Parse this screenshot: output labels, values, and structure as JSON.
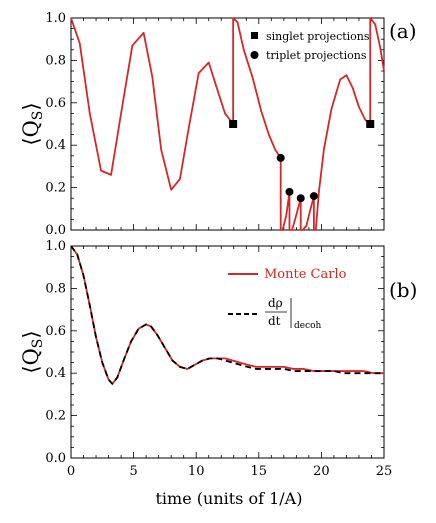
{
  "figure": {
    "x_label": "time (units of 1/A)",
    "y_label_a": "⟨Q",
    "y_label_b": "⟨Q",
    "y_label_sub": "S",
    "y_label_close": "⟩"
  },
  "chart_data": [
    {
      "panel_label": "(a)",
      "type": "line",
      "xlim": [
        0,
        25
      ],
      "ylim": [
        0,
        1
      ],
      "x_ticks": [
        "0",
        "5",
        "10",
        "15",
        "20",
        "25"
      ],
      "y_ticks": [
        "0.0",
        "0.2",
        "0.4",
        "0.6",
        "0.8",
        "1.0"
      ],
      "x_tick_values": [
        0,
        5,
        10,
        15,
        20,
        25
      ],
      "y_tick_values": [
        0,
        0.2,
        0.4,
        0.6,
        0.8,
        1.0
      ],
      "series": [
        {
          "color": "#d62728",
          "x": [
            0,
            0.7,
            1.5,
            2.4,
            3.2,
            4.0,
            4.9,
            5.8,
            6.5,
            7.2,
            8.0,
            8.7,
            9.4,
            10.2,
            11.0,
            11.7,
            12.3,
            12.95,
            12.95,
            13.3,
            13.8,
            14.5,
            15.2,
            15.8,
            16.3,
            16.75,
            16.75,
            16.9,
            17.2,
            17.45,
            17.45,
            17.65,
            17.9,
            18.35,
            18.35,
            18.5,
            18.8,
            19.05,
            19.4,
            19.4,
            19.55,
            19.8,
            20.2,
            20.8,
            21.5,
            22.0,
            22.5,
            23.0,
            23.5,
            23.9,
            23.9,
            24.3,
            24.7,
            25
          ],
          "y": [
            1.0,
            0.88,
            0.55,
            0.28,
            0.26,
            0.55,
            0.87,
            0.93,
            0.72,
            0.38,
            0.19,
            0.24,
            0.48,
            0.74,
            0.79,
            0.66,
            0.55,
            0.5,
            1.0,
            0.98,
            0.85,
            0.72,
            0.56,
            0.45,
            0.38,
            0.34,
            0.0,
            0.0,
            0.07,
            0.18,
            0.0,
            0.0,
            0.05,
            0.15,
            0.0,
            0.0,
            0.02,
            0.08,
            0.16,
            0.0,
            0.0,
            0.18,
            0.38,
            0.57,
            0.71,
            0.73,
            0.67,
            0.58,
            0.52,
            0.5,
            1.0,
            0.97,
            0.86,
            0.75
          ]
        }
      ],
      "markers": [
        {
          "shape": "square",
          "x": 12.95,
          "y": 0.5
        },
        {
          "shape": "circle",
          "x": 16.75,
          "y": 0.34
        },
        {
          "shape": "circle",
          "x": 17.45,
          "y": 0.18
        },
        {
          "shape": "circle",
          "x": 18.35,
          "y": 0.15
        },
        {
          "shape": "circle",
          "x": 19.4,
          "y": 0.16
        },
        {
          "shape": "square",
          "x": 23.9,
          "y": 0.5
        }
      ],
      "legend": {
        "position": "top-right",
        "entries": [
          {
            "marker": "square",
            "label": "singlet projections"
          },
          {
            "marker": "circle",
            "label": "triplet projections"
          }
        ]
      }
    },
    {
      "panel_label": "(b)",
      "type": "line",
      "xlim": [
        0,
        25
      ],
      "ylim": [
        0,
        1
      ],
      "x_ticks": [
        "0",
        "5",
        "10",
        "15",
        "20",
        "25"
      ],
      "y_ticks": [
        "0.0",
        "0.2",
        "0.4",
        "0.6",
        "0.8",
        "1.0"
      ],
      "x_tick_values": [
        0,
        5,
        10,
        15,
        20,
        25
      ],
      "y_tick_values": [
        0,
        0.2,
        0.4,
        0.6,
        0.8,
        1.0
      ],
      "series": [
        {
          "name": "Monte Carlo",
          "color": "#d62728",
          "style": "solid",
          "x": [
            0,
            0.5,
            1,
            1.5,
            2,
            2.5,
            3,
            3.3,
            3.7,
            4.2,
            4.8,
            5.4,
            6.0,
            6.4,
            6.9,
            7.5,
            8.1,
            8.7,
            9.3,
            9.9,
            10.5,
            11.1,
            11.7,
            12.3,
            12.9,
            13.5,
            14.1,
            14.8,
            15.5,
            16.2,
            17.0,
            17.8,
            18.6,
            19.4,
            20.2,
            21.0,
            21.8,
            22.6,
            23.4,
            24.2,
            25
          ],
          "y": [
            1.0,
            0.96,
            0.86,
            0.72,
            0.57,
            0.45,
            0.37,
            0.35,
            0.38,
            0.46,
            0.55,
            0.61,
            0.63,
            0.62,
            0.58,
            0.52,
            0.46,
            0.43,
            0.42,
            0.44,
            0.46,
            0.47,
            0.47,
            0.47,
            0.46,
            0.45,
            0.44,
            0.43,
            0.43,
            0.43,
            0.43,
            0.42,
            0.42,
            0.41,
            0.41,
            0.41,
            0.41,
            0.41,
            0.41,
            0.4,
            0.4
          ]
        },
        {
          "name": "",
          "color": "#000000",
          "style": "dashed",
          "x": [
            0,
            0.5,
            1,
            1.5,
            2,
            2.5,
            3,
            3.3,
            3.7,
            4.2,
            4.8,
            5.4,
            6.0,
            6.4,
            6.9,
            7.5,
            8.1,
            8.7,
            9.3,
            9.9,
            10.5,
            11.1,
            11.7,
            12.3,
            12.9,
            13.5,
            14.1,
            14.8,
            15.5,
            16.2,
            17.0,
            17.8,
            18.6,
            19.4,
            20.2,
            21.0,
            21.8,
            22.6,
            23.4,
            24.2,
            25
          ],
          "y": [
            1.0,
            0.96,
            0.86,
            0.72,
            0.57,
            0.45,
            0.37,
            0.35,
            0.38,
            0.46,
            0.55,
            0.61,
            0.63,
            0.62,
            0.58,
            0.52,
            0.46,
            0.43,
            0.42,
            0.44,
            0.46,
            0.47,
            0.47,
            0.46,
            0.45,
            0.44,
            0.43,
            0.42,
            0.42,
            0.42,
            0.42,
            0.41,
            0.41,
            0.41,
            0.41,
            0.41,
            0.4,
            0.4,
            0.4,
            0.4,
            0.4
          ]
        }
      ],
      "legend": {
        "position": "top-right",
        "entries": [
          {
            "style": "solid",
            "color": "#d62728",
            "label": "Monte Carlo"
          },
          {
            "style": "dashed",
            "color": "#000000",
            "numerator": "dρ",
            "denominator": "dt",
            "subscript": "decoh"
          }
        ]
      }
    }
  ]
}
